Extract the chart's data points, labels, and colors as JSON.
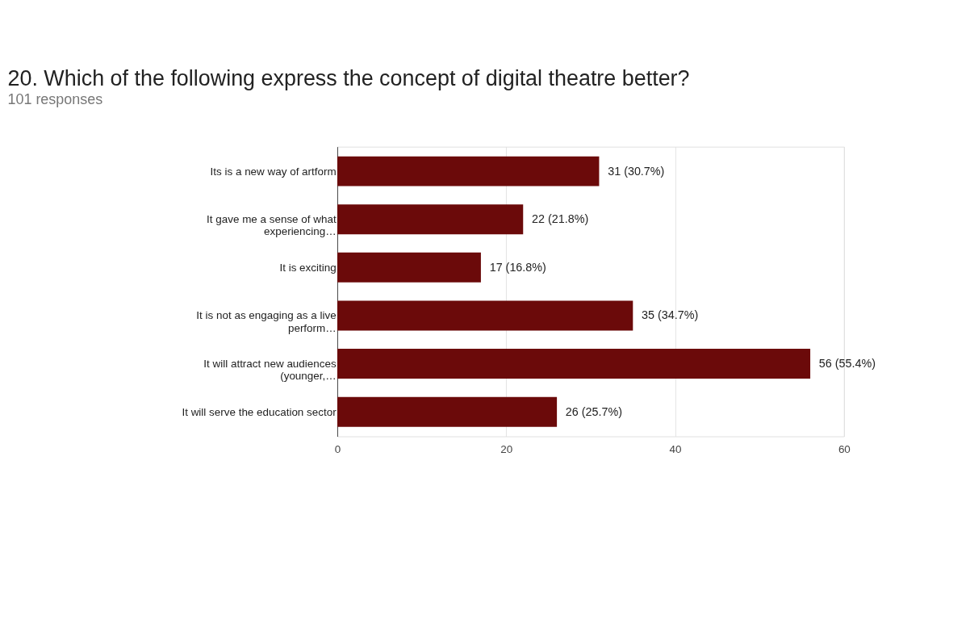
{
  "chart_data": {
    "type": "bar",
    "orientation": "horizontal",
    "title": "20. Which of the following express the concept of digital theatre better?",
    "subtitle": "101 responses",
    "categories": [
      "Its is a new way of artform",
      "It gave me a sense of what\nexperiencing…",
      "It is exciting",
      "It is not as engaging as a live\nperform…",
      "It will attract new audiences\n(younger,…",
      "It will serve the education sector"
    ],
    "values": [
      31,
      22,
      17,
      35,
      56,
      26
    ],
    "value_labels": [
      "31 (30.7%)",
      "22 (21.8%)",
      "17 (16.8%)",
      "35 (34.7%)",
      "56 (55.4%)",
      "26 (25.7%)"
    ],
    "color": "#6b0a0a",
    "xlim": [
      0,
      60
    ],
    "xticks": [
      0,
      20,
      40,
      60
    ],
    "grid": "x"
  }
}
